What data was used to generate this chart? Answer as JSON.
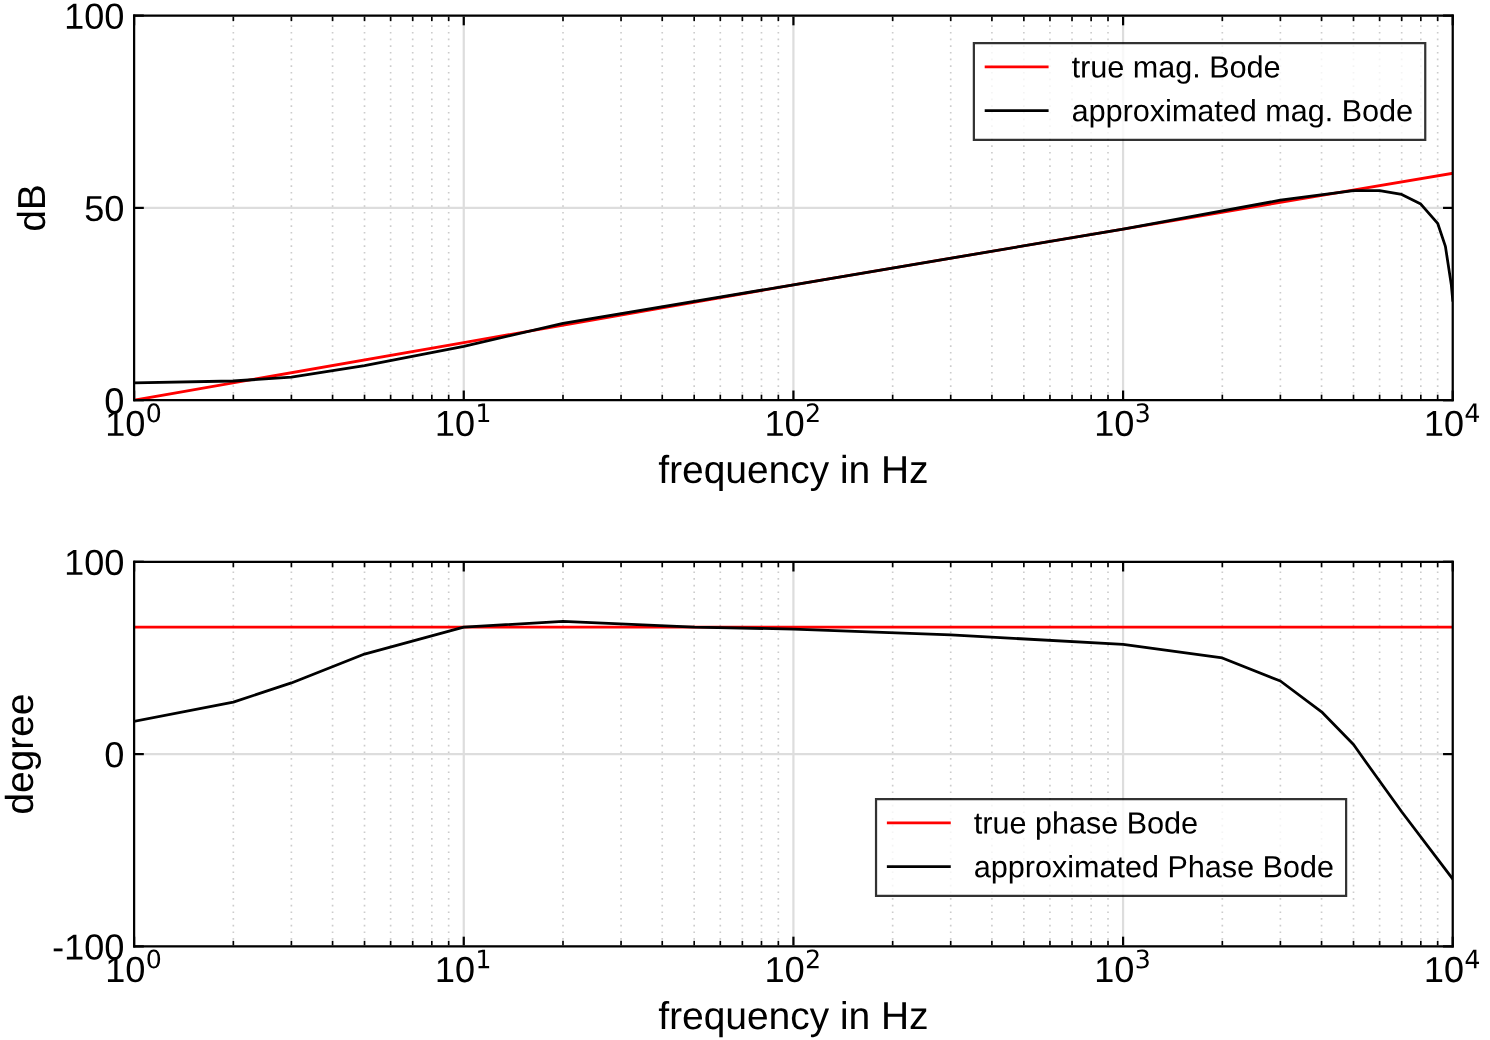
{
  "chart_data": [
    {
      "type": "line",
      "xlabel": "frequency in Hz",
      "ylabel": "dB",
      "log": "x",
      "grid": true,
      "legend": "top right",
      "xlim": [
        1,
        10000
      ],
      "ylim": [
        0,
        100
      ],
      "yticks": [
        0,
        50,
        100
      ],
      "xticks": [
        {
          "value": 1,
          "label": "10$^{0}$"
        },
        {
          "value": 10,
          "label": "10$^{1}$"
        },
        {
          "value": 100,
          "label": "10$^{2}$"
        },
        {
          "value": 1000,
          "label": "10$^{3}$"
        },
        {
          "value": 10000,
          "label": "10$^{4}$"
        }
      ],
      "series": [
        {
          "name": "true mag. Bode",
          "color": "#ff0000",
          "x": [
            1,
            10,
            100,
            1000,
            10000
          ],
          "values": [
            0,
            15,
            30,
            44.5,
            59
          ]
        },
        {
          "name": "approximated mag. Bode",
          "color": "#000000",
          "x": [
            1,
            2,
            3,
            5,
            10,
            20,
            100,
            1000,
            3000,
            5000,
            6000,
            7000,
            8000,
            9000,
            9500,
            9900,
            10000
          ],
          "values": [
            4.5,
            5,
            6,
            9,
            14,
            20,
            30,
            44.5,
            52,
            54.5,
            54.5,
            53.5,
            51,
            46,
            40,
            30,
            26
          ]
        }
      ]
    },
    {
      "type": "line",
      "xlabel": "frequency in Hz",
      "ylabel": "degree",
      "log": "x",
      "grid": true,
      "legend": "bottom right",
      "xlim": [
        1,
        10000
      ],
      "ylim": [
        -100,
        100
      ],
      "yticks": [
        -100,
        0,
        100
      ],
      "xticks": [
        {
          "value": 1,
          "label": "10$^{0}$"
        },
        {
          "value": 10,
          "label": "10$^{1}$"
        },
        {
          "value": 100,
          "label": "10$^{2}$"
        },
        {
          "value": 1000,
          "label": "10$^{3}$"
        },
        {
          "value": 10000,
          "label": "10$^{4}$"
        }
      ],
      "series": [
        {
          "name": "true phase Bode",
          "color": "#ff0000",
          "x": [
            1,
            10000
          ],
          "values": [
            66,
            66
          ]
        },
        {
          "name": "approximated Phase Bode",
          "color": "#000000",
          "x": [
            1,
            2,
            3,
            5,
            10,
            20,
            50,
            100,
            300,
            1000,
            2000,
            3000,
            4000,
            5000,
            5500,
            7000,
            10000
          ],
          "values": [
            17,
            27,
            37,
            52,
            66,
            69,
            66,
            65,
            62,
            57,
            50,
            38,
            22,
            5,
            -5,
            -30,
            -65
          ]
        }
      ]
    }
  ]
}
